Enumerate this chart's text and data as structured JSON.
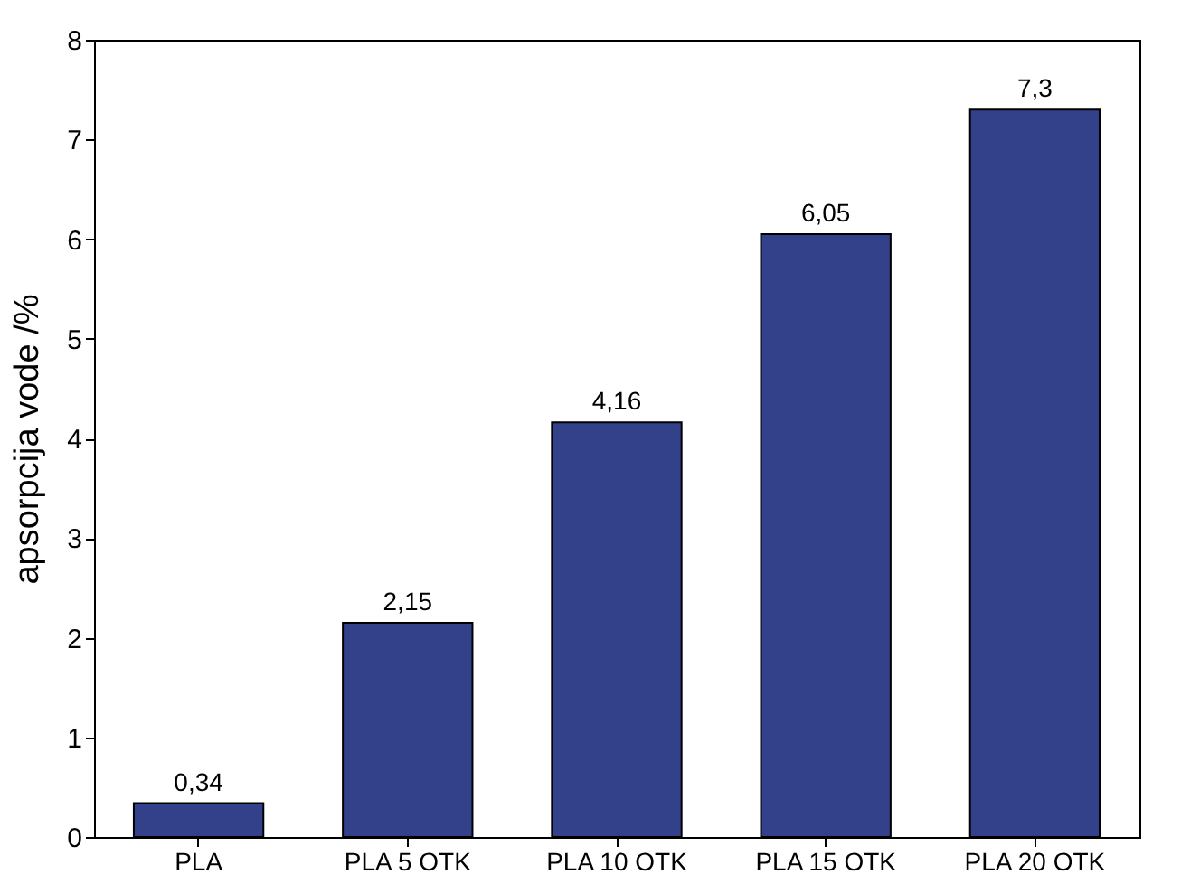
{
  "chart_data": {
    "type": "bar",
    "ylabel": "apsorpcija vode /%",
    "categories": [
      "PLA",
      "PLA 5 OTK",
      "PLA 10 OTK",
      "PLA 15 OTK",
      "PLA 20 OTK"
    ],
    "values": [
      0.34,
      2.15,
      4.16,
      6.05,
      7.3
    ],
    "value_labels": [
      "0,34",
      "2,15",
      "4,16",
      "6,05",
      "7,3"
    ],
    "color": "#33408a",
    "ylim": [
      0,
      8
    ],
    "yticks": [
      0,
      1,
      2,
      3,
      4,
      5,
      6,
      7,
      8
    ],
    "grid": false
  }
}
